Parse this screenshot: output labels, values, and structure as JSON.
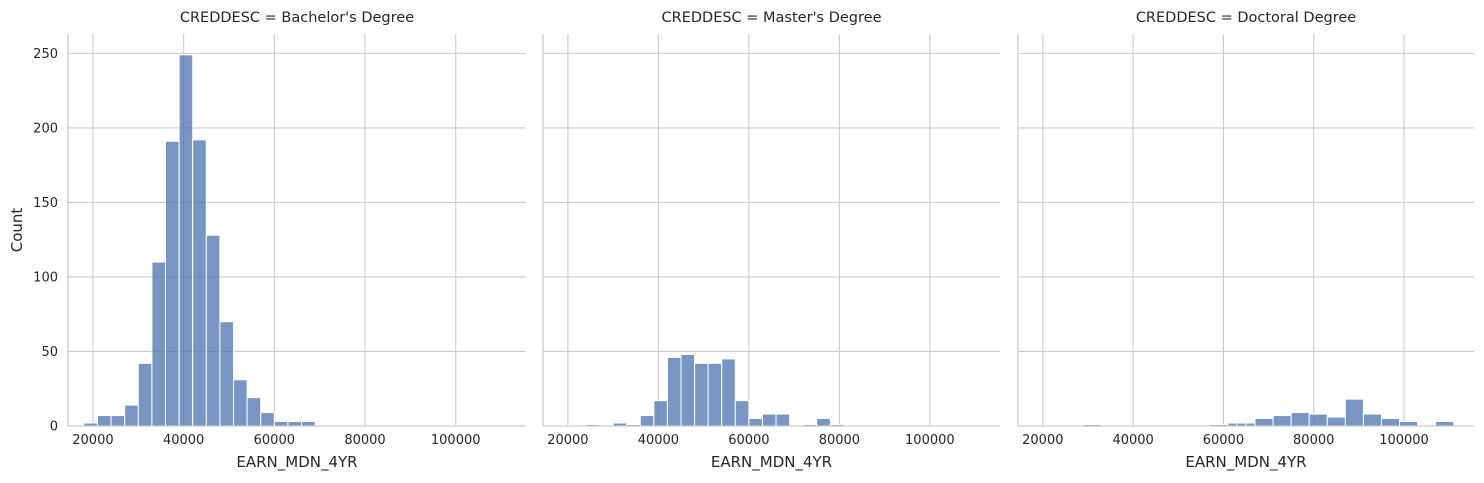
{
  "chart_data": [
    {
      "type": "bar",
      "title": "CREDDESC = Bachelor's Degree",
      "xlabel": "EARN_MDN_4YR",
      "ylabel": "Count",
      "xlim": [
        14500,
        115500
      ],
      "ylim": [
        0,
        263
      ],
      "xticks": [
        20000,
        40000,
        60000,
        80000,
        100000
      ],
      "yticks": [
        0,
        50,
        100,
        150,
        200,
        250
      ],
      "grid": true,
      "color": "#4c72b0",
      "bins": [
        {
          "x0": 18000,
          "x1": 21000,
          "count": 2
        },
        {
          "x0": 21000,
          "x1": 24000,
          "count": 7
        },
        {
          "x0": 24000,
          "x1": 27000,
          "count": 7
        },
        {
          "x0": 27000,
          "x1": 30000,
          "count": 14
        },
        {
          "x0": 30000,
          "x1": 33000,
          "count": 42
        },
        {
          "x0": 33000,
          "x1": 36000,
          "count": 110
        },
        {
          "x0": 36000,
          "x1": 39000,
          "count": 191
        },
        {
          "x0": 39000,
          "x1": 42000,
          "count": 249
        },
        {
          "x0": 42000,
          "x1": 45000,
          "count": 192
        },
        {
          "x0": 45000,
          "x1": 48000,
          "count": 128
        },
        {
          "x0": 48000,
          "x1": 51000,
          "count": 70
        },
        {
          "x0": 51000,
          "x1": 54000,
          "count": 31
        },
        {
          "x0": 54000,
          "x1": 57000,
          "count": 19
        },
        {
          "x0": 57000,
          "x1": 60000,
          "count": 9
        },
        {
          "x0": 60000,
          "x1": 63000,
          "count": 3
        },
        {
          "x0": 63000,
          "x1": 66000,
          "count": 3
        },
        {
          "x0": 66000,
          "x1": 69000,
          "count": 3
        }
      ]
    },
    {
      "type": "bar",
      "title": "CREDDESC = Master's Degree",
      "xlabel": "EARN_MDN_4YR",
      "ylabel": "",
      "xlim": [
        14500,
        115500
      ],
      "ylim": [
        0,
        263
      ],
      "xticks": [
        20000,
        40000,
        60000,
        80000,
        100000
      ],
      "yticks": [
        0,
        50,
        100,
        150,
        200,
        250
      ],
      "grid": true,
      "color": "#4c72b0",
      "bins": [
        {
          "x0": 24000,
          "x1": 27000,
          "count": 1
        },
        {
          "x0": 30000,
          "x1": 33000,
          "count": 2
        },
        {
          "x0": 33000,
          "x1": 36000,
          "count": 1
        },
        {
          "x0": 36000,
          "x1": 39000,
          "count": 7
        },
        {
          "x0": 39000,
          "x1": 42000,
          "count": 17
        },
        {
          "x0": 42000,
          "x1": 45000,
          "count": 46
        },
        {
          "x0": 45000,
          "x1": 48000,
          "count": 48
        },
        {
          "x0": 48000,
          "x1": 51000,
          "count": 42
        },
        {
          "x0": 51000,
          "x1": 54000,
          "count": 42
        },
        {
          "x0": 54000,
          "x1": 57000,
          "count": 45
        },
        {
          "x0": 57000,
          "x1": 60000,
          "count": 17
        },
        {
          "x0": 60000,
          "x1": 63000,
          "count": 5
        },
        {
          "x0": 63000,
          "x1": 66000,
          "count": 8
        },
        {
          "x0": 66000,
          "x1": 69000,
          "count": 8
        },
        {
          "x0": 72000,
          "x1": 75000,
          "count": 1
        },
        {
          "x0": 75000,
          "x1": 78000,
          "count": 5
        },
        {
          "x0": 78000,
          "x1": 81000,
          "count": 1
        }
      ]
    },
    {
      "type": "bar",
      "title": "CREDDESC = Doctoral Degree",
      "xlabel": "EARN_MDN_4YR",
      "ylabel": "",
      "xlim": [
        14500,
        115500
      ],
      "ylim": [
        0,
        263
      ],
      "xticks": [
        20000,
        40000,
        60000,
        80000,
        100000
      ],
      "yticks": [
        0,
        50,
        100,
        150,
        200,
        250
      ],
      "grid": true,
      "color": "#4c72b0",
      "bins": [
        {
          "x0": 29000,
          "x1": 33000,
          "count": 1
        },
        {
          "x0": 57000,
          "x1": 61000,
          "count": 1
        },
        {
          "x0": 61000,
          "x1": 63000,
          "count": 2
        },
        {
          "x0": 63000,
          "x1": 65000,
          "count": 2
        },
        {
          "x0": 65000,
          "x1": 67000,
          "count": 2
        },
        {
          "x0": 67000,
          "x1": 71000,
          "count": 5
        },
        {
          "x0": 71000,
          "x1": 75000,
          "count": 7
        },
        {
          "x0": 75000,
          "x1": 79000,
          "count": 9
        },
        {
          "x0": 79000,
          "x1": 83000,
          "count": 8
        },
        {
          "x0": 83000,
          "x1": 87000,
          "count": 6
        },
        {
          "x0": 87000,
          "x1": 91000,
          "count": 18
        },
        {
          "x0": 91000,
          "x1": 95000,
          "count": 8
        },
        {
          "x0": 95000,
          "x1": 99000,
          "count": 5
        },
        {
          "x0": 99000,
          "x1": 103000,
          "count": 3
        },
        {
          "x0": 107000,
          "x1": 111000,
          "count": 3
        }
      ]
    }
  ]
}
